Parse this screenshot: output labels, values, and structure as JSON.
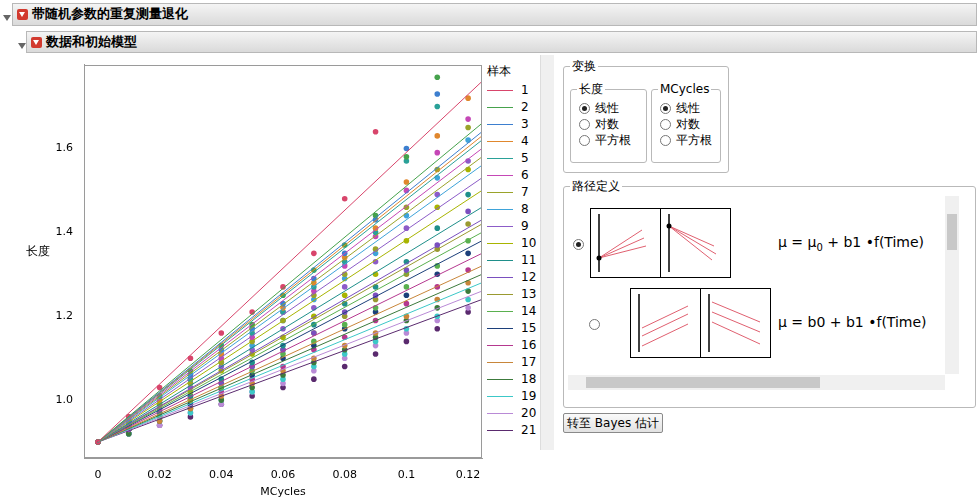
{
  "header": {
    "title": "带随机参数的重复测量退化",
    "subtitle": "数据和初始模型"
  },
  "chart_data": {
    "type": "scatter",
    "x_label": "MCycles",
    "y_label": "长度",
    "legend_title": "样本",
    "legend": "right",
    "grid": false,
    "marker": "circle",
    "x": [
      0,
      0.01,
      0.02,
      0.03,
      0.04,
      0.05,
      0.06,
      0.07,
      0.08,
      0.09,
      0.1,
      0.11,
      0.12
    ],
    "xlim": [
      -0.0045,
      0.1245
    ],
    "xticks": [
      0,
      0.02,
      0.04,
      0.06,
      0.08,
      0.1,
      0.12
    ],
    "ylim": [
      0.862,
      1.8
    ],
    "yticks": [
      {
        "value": 1,
        "label": "1.0"
      },
      {
        "value": 1.2,
        "label": "1.2"
      },
      {
        "value": 1.4,
        "label": "1.4"
      },
      {
        "value": 1.6,
        "label": "1.6"
      }
    ],
    "fit_x": [
      0,
      0.1245
    ],
    "series": [
      {
        "name": "1",
        "color": "#d8456b",
        "values": [
          0.9,
          0.96,
          1.03,
          1.1,
          1.16,
          1.21,
          1.27,
          1.35,
          1.48,
          1.64,
          null,
          null,
          null
        ],
        "fit_values": [
          0.9,
          1.76
        ]
      },
      {
        "name": "2",
        "color": "#46a24c",
        "values": [
          0.9,
          0.96,
          1.01,
          1.07,
          1.13,
          1.18,
          1.25,
          1.31,
          1.37,
          1.44,
          1.58,
          1.77,
          null
        ],
        "fit_values": [
          0.9,
          1.66
        ]
      },
      {
        "name": "3",
        "color": "#3d7fcf",
        "values": [
          0.9,
          0.95,
          1.01,
          1.06,
          1.12,
          1.17,
          1.23,
          1.29,
          1.35,
          1.43,
          1.6,
          1.73,
          null
        ],
        "fit_values": [
          0.9,
          1.64
        ]
      },
      {
        "name": "4",
        "color": "#e0872d",
        "values": [
          0.9,
          0.95,
          1.0,
          1.06,
          1.11,
          1.17,
          1.22,
          1.28,
          1.34,
          1.41,
          1.52,
          1.63,
          1.72
        ],
        "fit_values": [
          0.9,
          1.63
        ]
      },
      {
        "name": "5",
        "color": "#2aa198",
        "values": [
          0.9,
          0.95,
          1.0,
          1.05,
          1.11,
          1.16,
          1.21,
          1.27,
          1.33,
          1.4,
          1.57,
          1.7,
          null
        ],
        "fit_values": [
          0.9,
          1.62
        ]
      },
      {
        "name": "6",
        "color": "#c547b6",
        "values": [
          0.9,
          0.95,
          1.0,
          1.05,
          1.1,
          1.15,
          1.21,
          1.26,
          1.32,
          1.39,
          1.5,
          1.59,
          1.67
        ],
        "fit_values": [
          0.9,
          1.6
        ]
      },
      {
        "name": "7",
        "color": "#9aa32a",
        "values": [
          0.9,
          0.95,
          0.99,
          1.04,
          1.09,
          1.14,
          1.19,
          1.25,
          1.3,
          1.36,
          1.46,
          1.55,
          1.65
        ],
        "fit_values": [
          0.9,
          1.58
        ]
      },
      {
        "name": "8",
        "color": "#3ea3d9",
        "values": [
          0.9,
          0.94,
          0.99,
          1.04,
          1.09,
          1.13,
          1.19,
          1.24,
          1.29,
          1.35,
          1.44,
          1.53,
          1.62
        ],
        "fit_values": [
          0.9,
          1.56
        ]
      },
      {
        "name": "9",
        "color": "#8c5cc8",
        "values": [
          0.9,
          0.94,
          0.98,
          1.03,
          1.08,
          1.12,
          1.17,
          1.22,
          1.27,
          1.33,
          1.41,
          1.49,
          1.57
        ],
        "fit_values": [
          0.9,
          1.53
        ]
      },
      {
        "name": "10",
        "color": "#a8b400",
        "values": [
          0.9,
          0.94,
          0.98,
          1.02,
          1.07,
          1.11,
          1.15,
          1.2,
          1.25,
          1.3,
          1.38,
          1.46,
          1.55
        ],
        "fit_values": [
          0.9,
          1.5
        ]
      },
      {
        "name": "11",
        "color": "#1f8f8a",
        "values": [
          0.9,
          0.94,
          0.97,
          1.01,
          1.05,
          1.09,
          1.13,
          1.18,
          1.23,
          1.27,
          1.33,
          1.41,
          1.49
        ],
        "fit_values": [
          0.9,
          1.46
        ]
      },
      {
        "name": "12",
        "color": "#7a4fbf",
        "values": [
          0.9,
          0.93,
          0.97,
          1.01,
          1.04,
          1.08,
          1.12,
          1.16,
          1.21,
          1.25,
          1.31,
          1.37,
          1.45
        ],
        "fit_values": [
          0.9,
          1.43
        ]
      },
      {
        "name": "13",
        "color": "#9a9a30",
        "values": [
          0.9,
          0.93,
          0.97,
          1.0,
          1.04,
          1.08,
          1.12,
          1.16,
          1.2,
          1.24,
          1.3,
          1.36,
          1.42
        ],
        "fit_values": [
          0.9,
          1.42
        ]
      },
      {
        "name": "14",
        "color": "#5ab04f",
        "values": [
          0.9,
          0.93,
          0.96,
          1.0,
          1.03,
          1.07,
          1.11,
          1.14,
          1.18,
          1.22,
          1.27,
          1.32,
          1.38
        ],
        "fit_values": [
          0.9,
          1.4
        ]
      },
      {
        "name": "15",
        "color": "#1c3f7a",
        "values": [
          0.9,
          0.93,
          0.96,
          0.99,
          1.03,
          1.06,
          1.1,
          1.13,
          1.17,
          1.21,
          1.25,
          1.3,
          1.35
        ],
        "fit_values": [
          0.9,
          1.38
        ]
      },
      {
        "name": "16",
        "color": "#b5388f",
        "values": [
          0.9,
          0.93,
          0.96,
          0.99,
          1.02,
          1.05,
          1.08,
          1.12,
          1.15,
          1.19,
          1.23,
          1.27,
          1.31
        ],
        "fit_values": [
          0.9,
          1.35
        ]
      },
      {
        "name": "17",
        "color": "#c8863a",
        "values": [
          0.9,
          0.93,
          0.95,
          0.98,
          1.01,
          1.04,
          1.07,
          1.1,
          1.13,
          1.16,
          1.2,
          1.24,
          1.28
        ],
        "fit_values": [
          0.9,
          1.32
        ]
      },
      {
        "name": "18",
        "color": "#3c7a3c",
        "values": [
          0.9,
          0.92,
          0.95,
          0.98,
          1.0,
          1.03,
          1.06,
          1.09,
          1.12,
          1.15,
          1.19,
          1.22,
          1.26
        ],
        "fit_values": [
          0.9,
          1.3
        ]
      },
      {
        "name": "19",
        "color": "#3cc8c8",
        "values": [
          0.9,
          0.92,
          0.95,
          0.97,
          1.0,
          1.02,
          1.05,
          1.08,
          1.11,
          1.14,
          1.17,
          1.2,
          1.24
        ],
        "fit_values": [
          0.9,
          1.28
        ]
      },
      {
        "name": "20",
        "color": "#b98ad6",
        "values": [
          0.9,
          0.92,
          0.94,
          0.97,
          0.99,
          1.02,
          1.04,
          1.07,
          1.1,
          1.13,
          1.16,
          1.19,
          1.22
        ],
        "fit_values": [
          0.9,
          1.26
        ]
      },
      {
        "name": "21",
        "color": "#5a2a6e",
        "values": [
          0.9,
          0.92,
          0.94,
          0.96,
          0.99,
          1.01,
          1.03,
          1.05,
          1.08,
          1.11,
          1.14,
          1.17,
          1.21
        ],
        "fit_values": [
          0.9,
          1.24
        ]
      }
    ]
  },
  "transform": {
    "title": "变换",
    "groups": [
      {
        "title": "长度",
        "options": [
          "线性",
          "对数",
          "平方根"
        ],
        "selected": "线性"
      },
      {
        "title": "MCycles",
        "options": [
          "线性",
          "对数",
          "平方根"
        ],
        "selected": "线性"
      }
    ]
  },
  "path_definition": {
    "title": "路径定义",
    "options": [
      {
        "formula": {
          "lhs": "μ = μ",
          "sub": "0",
          "rhs": " + b1 •f(Time)"
        },
        "selected": true
      },
      {
        "formula": {
          "lhs": "μ = b0 + b1 •f(Time)"
        },
        "selected": false
      }
    ]
  },
  "button": "转至 Bayes 估计"
}
